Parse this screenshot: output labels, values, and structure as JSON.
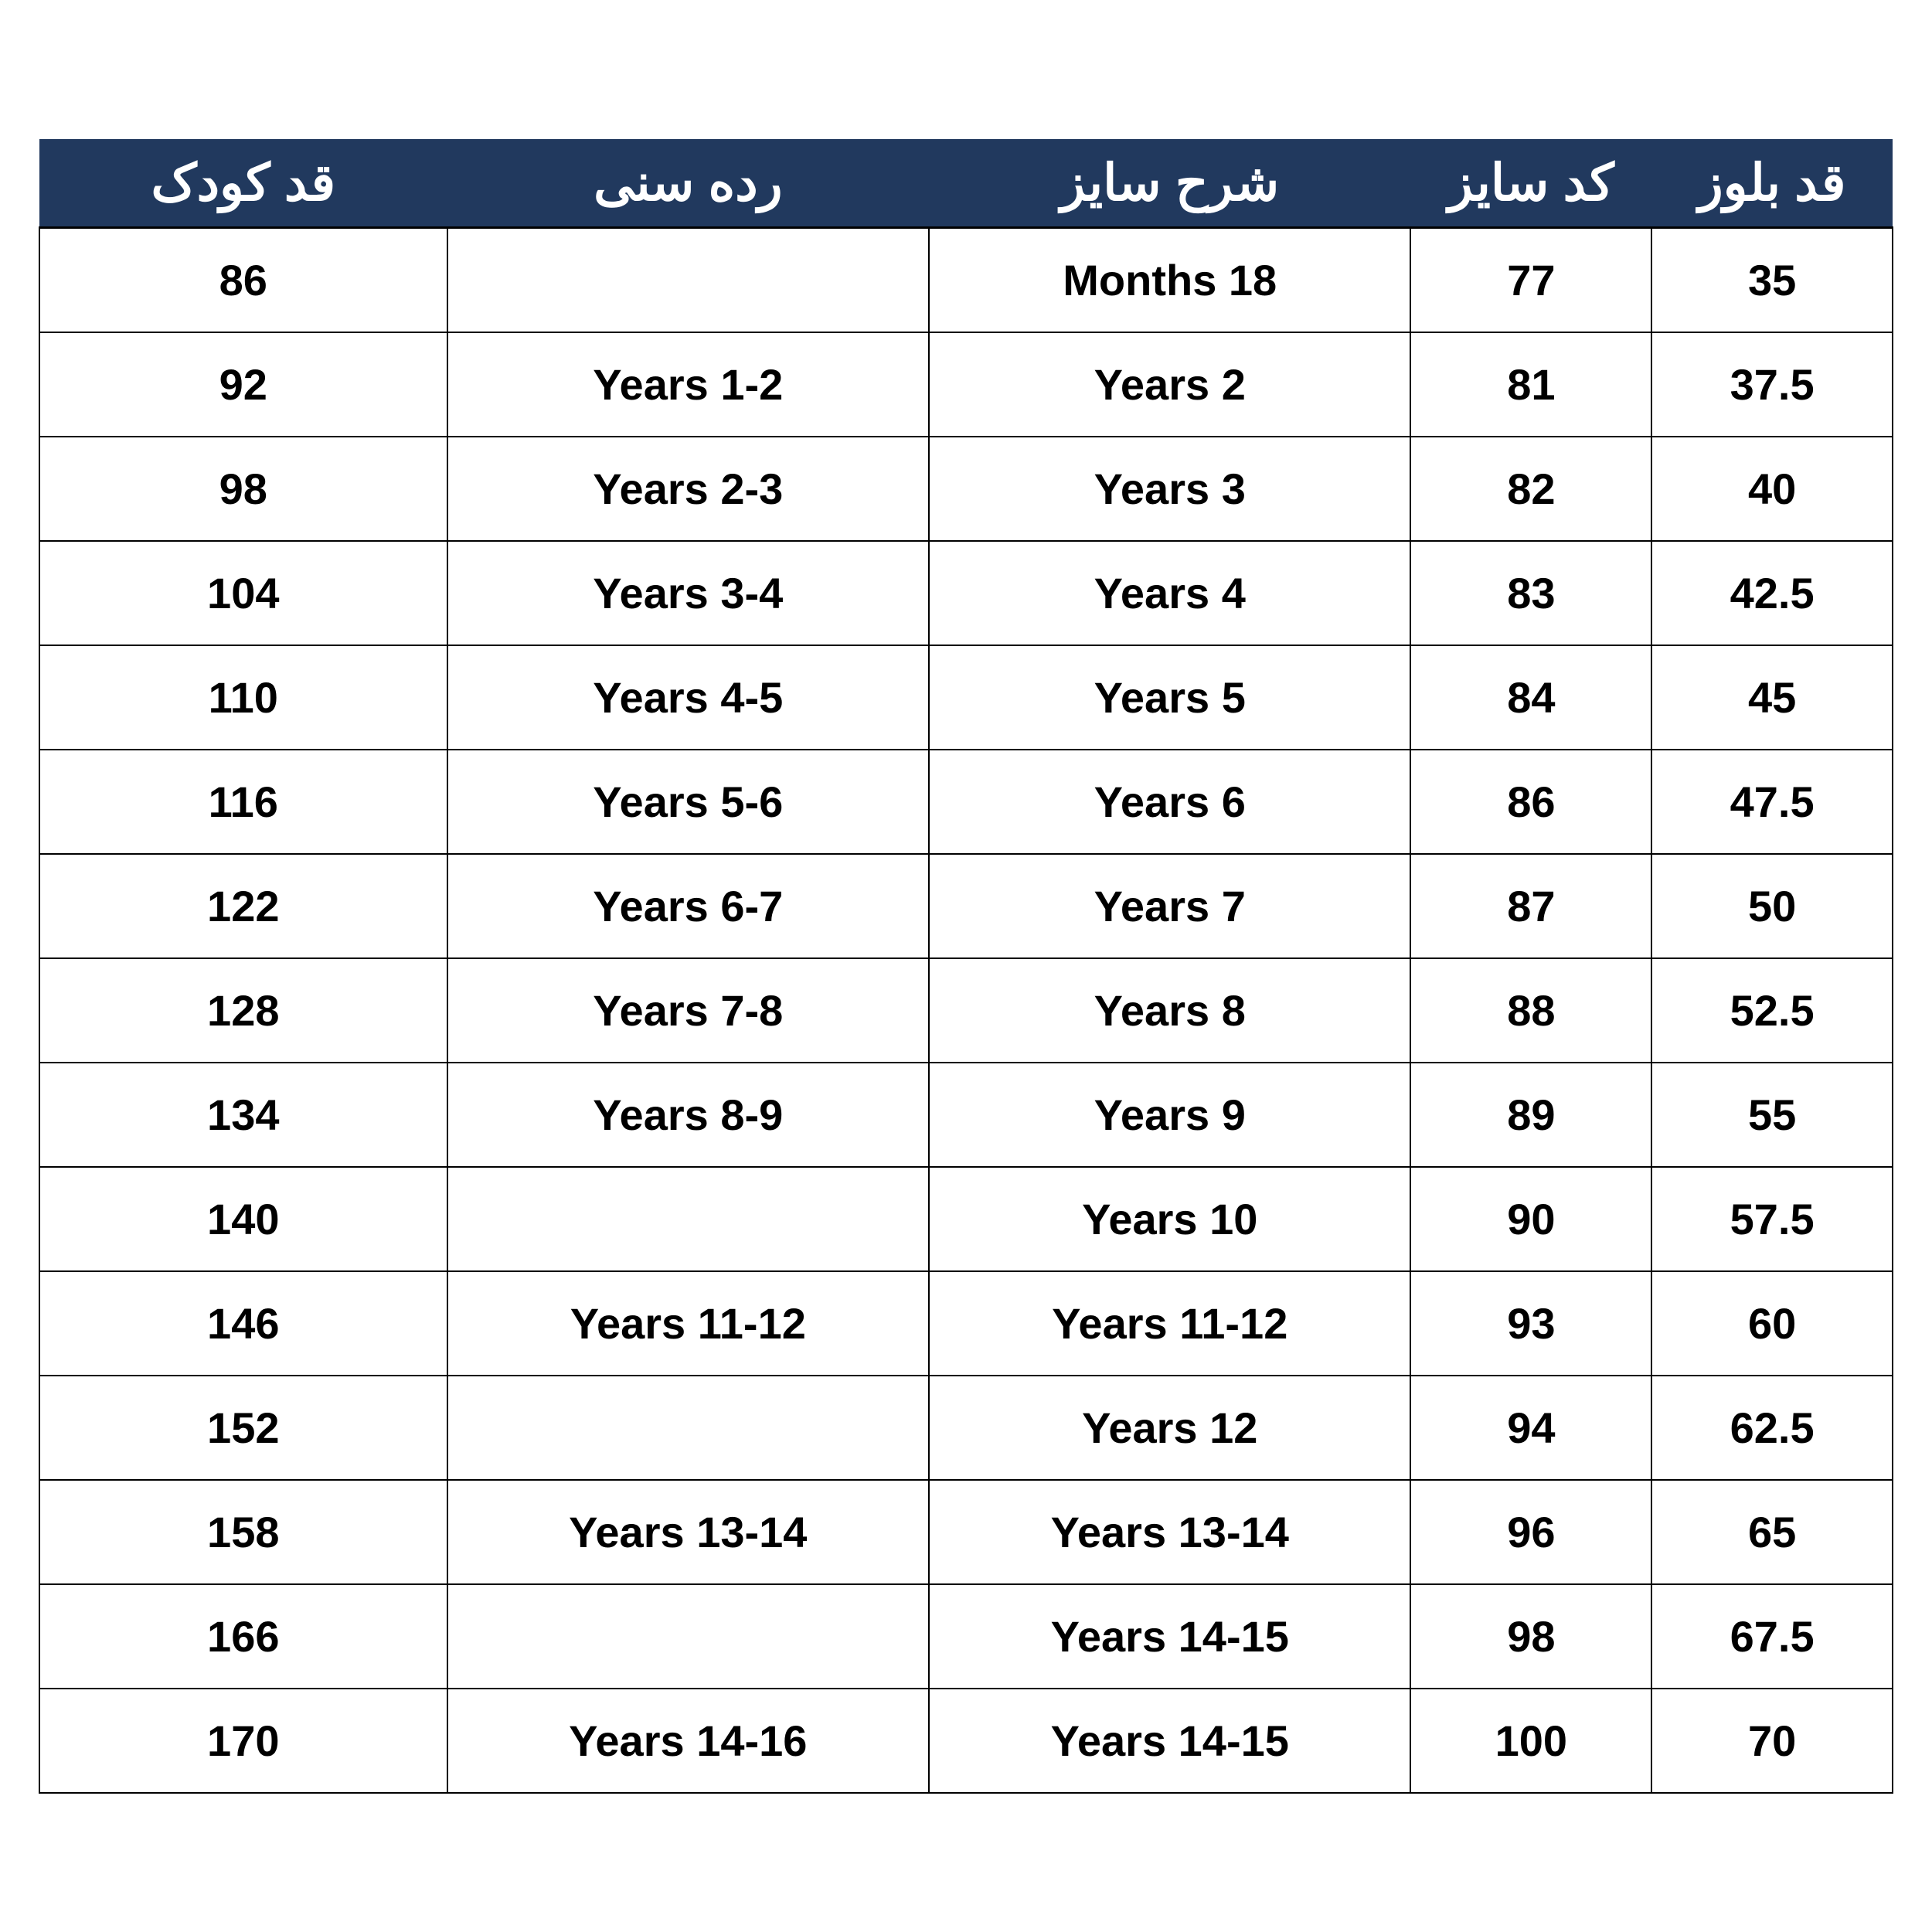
{
  "table": {
    "type": "table",
    "header_bg_color": "#21395e",
    "header_text_color": "#ffffff",
    "cell_bg_color": "#ffffff",
    "cell_text_color": "#000000",
    "border_color": "#000000",
    "header_fontsize": 66,
    "cell_fontsize": 56,
    "font_weight_header": 700,
    "font_weight_cell": 600,
    "column_widths_pct": [
      22,
      26,
      26,
      13,
      13
    ],
    "columns": [
      "قد کودک",
      "رده سنی",
      "شرح سایز",
      "کد سایز",
      "قد بلوز"
    ],
    "rows": [
      [
        "86",
        "",
        "Months 18",
        "77",
        "35"
      ],
      [
        "92",
        "Years 1-2",
        "Years 2",
        "81",
        "37.5"
      ],
      [
        "98",
        "Years 2-3",
        "Years 3",
        "82",
        "40"
      ],
      [
        "104",
        "Years 3-4",
        "Years 4",
        "83",
        "42.5"
      ],
      [
        "110",
        "Years 4-5",
        "Years 5",
        "84",
        "45"
      ],
      [
        "116",
        "Years 5-6",
        "Years 6",
        "86",
        "47.5"
      ],
      [
        "122",
        "Years 6-7",
        "Years 7",
        "87",
        "50"
      ],
      [
        "128",
        "Years 7-8",
        "Years 8",
        "88",
        "52.5"
      ],
      [
        "134",
        "Years 8-9",
        "Years 9",
        "89",
        "55"
      ],
      [
        "140",
        "",
        "Years 10",
        "90",
        "57.5"
      ],
      [
        "146",
        "Years 11-12",
        "Years 11-12",
        "93",
        "60"
      ],
      [
        "152",
        "",
        "Years 12",
        "94",
        "62.5"
      ],
      [
        "158",
        "Years 13-14",
        "Years 13-14",
        "96",
        "65"
      ],
      [
        "166",
        "",
        "Years 14-15",
        "98",
        "67.5"
      ],
      [
        "170",
        "Years 14-16",
        "Years 14-15",
        "100",
        "70"
      ]
    ]
  }
}
